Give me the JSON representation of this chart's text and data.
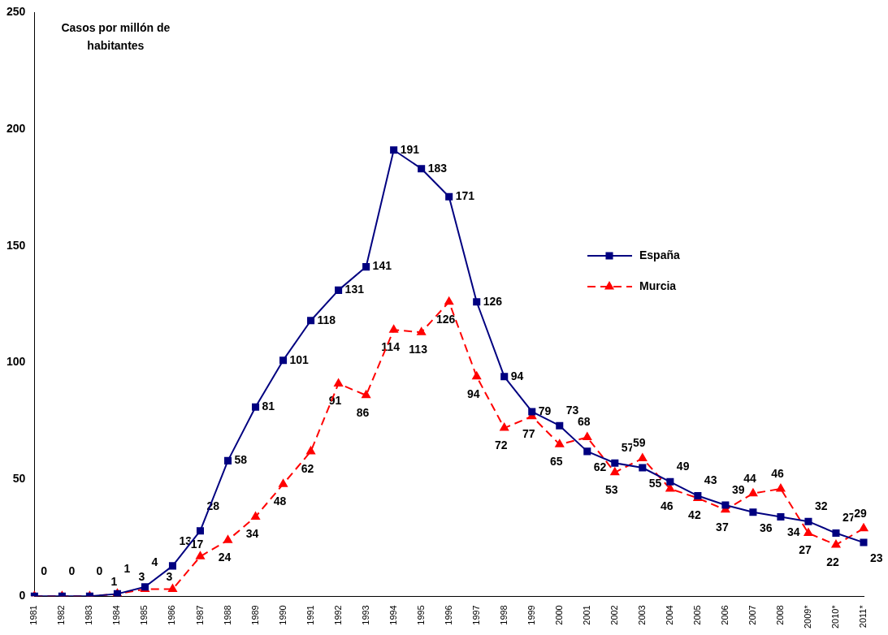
{
  "chart_data": {
    "type": "line",
    "ylabel": "Casos por millón de habitantes",
    "categories": [
      "1981",
      "1982",
      "1983",
      "1984",
      "1985",
      "1986",
      "1987",
      "1988",
      "1989",
      "1990",
      "1991",
      "1992",
      "1993",
      "1994",
      "1995",
      "1996",
      "1997",
      "1998",
      "1999",
      "2000",
      "2001",
      "2002",
      "2003",
      "2004",
      "2005",
      "2006",
      "2007",
      "2008",
      "2009*",
      "2010*",
      "2011*"
    ],
    "series": [
      {
        "name": "España",
        "color": "#000080",
        "marker": "square",
        "line_style": "solid",
        "values": [
          0,
          0,
          0,
          1,
          4,
          13,
          28,
          58,
          81,
          101,
          118,
          131,
          141,
          191,
          183,
          171,
          126,
          94,
          79,
          73,
          62,
          57,
          55,
          49,
          43,
          39,
          36,
          34,
          32,
          27,
          23
        ]
      },
      {
        "name": "Murcia",
        "color": "#ff0000",
        "marker": "triangle",
        "line_style": "dashed",
        "values": [
          0,
          0,
          0,
          1,
          3,
          3,
          17,
          24,
          34,
          48,
          62,
          91,
          86,
          114,
          113,
          126,
          94,
          72,
          77,
          65,
          68,
          53,
          59,
          46,
          42,
          37,
          44,
          46,
          27,
          22,
          29
        ],
        "value_labels": [
          null,
          null,
          null,
          "1",
          "3",
          "3",
          "17",
          "24",
          "34",
          "48",
          "62",
          "91",
          "86",
          "114",
          "113",
          "126",
          "94",
          "72",
          "77",
          "65",
          "68",
          "53",
          "59",
          "46",
          "42",
          "37",
          "44",
          "46",
          "27",
          "22",
          "29"
        ]
      }
    ],
    "ylim": [
      0,
      250
    ],
    "yticks": [
      0,
      50,
      100,
      150,
      200,
      250
    ],
    "grid": false,
    "legend": "right",
    "data_labels": true
  }
}
